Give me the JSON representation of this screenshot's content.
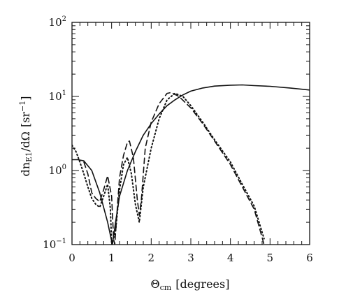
{
  "chart_data": {
    "type": "line",
    "xlabel": {
      "symbol": "Θ",
      "sub": "cm",
      "unit": "[degrees]"
    },
    "ylabel": {
      "main": "dn",
      "sub": "E1",
      "mid": "/dΩ",
      "unit_open": "[sr",
      "unit_exp": "−1",
      "unit_close": "]"
    },
    "xlim": [
      0,
      6
    ],
    "ylim": [
      0.1,
      100
    ],
    "y_scale": "log",
    "grid": false,
    "x_ticks": [
      {
        "value": 0,
        "label": "0"
      },
      {
        "value": 1,
        "label": "1"
      },
      {
        "value": 2,
        "label": "2"
      },
      {
        "value": 3,
        "label": "3"
      },
      {
        "value": 4,
        "label": "4"
      },
      {
        "value": 5,
        "label": "5"
      },
      {
        "value": 6,
        "label": "6"
      }
    ],
    "y_ticks": [
      {
        "value": 0.1,
        "base": "10",
        "exp": "−1"
      },
      {
        "value": 1,
        "base": "10",
        "exp": "0"
      },
      {
        "value": 10,
        "base": "10",
        "exp": "1"
      },
      {
        "value": 100,
        "base": "10",
        "exp": "2"
      }
    ],
    "series": [
      {
        "style": "solid",
        "points": [
          [
            0,
            1.4
          ],
          [
            0.15,
            1.4
          ],
          [
            0.3,
            1.35
          ],
          [
            0.5,
            1.0
          ],
          [
            0.7,
            0.5
          ],
          [
            0.9,
            0.2
          ],
          [
            1.02,
            0.1
          ],
          [
            1.1,
            0.2
          ],
          [
            1.2,
            0.45
          ],
          [
            1.4,
            1.0
          ],
          [
            1.6,
            1.8
          ],
          [
            1.8,
            3.0
          ],
          [
            2.0,
            4.3
          ],
          [
            2.2,
            5.8
          ],
          [
            2.4,
            7.5
          ],
          [
            2.6,
            9.0
          ],
          [
            2.8,
            10.5
          ],
          [
            3.0,
            11.8
          ],
          [
            3.3,
            13.0
          ],
          [
            3.6,
            13.8
          ],
          [
            4.0,
            14.2
          ],
          [
            4.3,
            14.3
          ],
          [
            4.6,
            14.0
          ],
          [
            5.0,
            13.7
          ],
          [
            5.5,
            13.0
          ],
          [
            6.0,
            12.2
          ]
        ]
      },
      {
        "style": "dashed",
        "points": [
          [
            0.3,
            1.3
          ],
          [
            0.4,
            0.9
          ],
          [
            0.5,
            0.5
          ],
          [
            0.6,
            0.42
          ],
          [
            0.7,
            0.38
          ],
          [
            0.8,
            0.55
          ],
          [
            0.9,
            0.85
          ],
          [
            1.0,
            0.45
          ],
          [
            1.05,
            0.12
          ],
          [
            1.08,
            0.1
          ],
          [
            1.15,
            0.35
          ],
          [
            1.2,
            0.8
          ],
          [
            1.3,
            1.6
          ],
          [
            1.4,
            2.4
          ],
          [
            1.45,
            2.5
          ],
          [
            1.55,
            1.5
          ],
          [
            1.65,
            0.4
          ],
          [
            1.7,
            0.25
          ],
          [
            1.75,
            0.4
          ],
          [
            1.85,
            2.0
          ],
          [
            2.0,
            4.5
          ],
          [
            2.2,
            8.0
          ],
          [
            2.4,
            11.0
          ],
          [
            2.5,
            11.3
          ],
          [
            2.7,
            10.0
          ],
          [
            3.0,
            7.0
          ],
          [
            3.3,
            4.3
          ],
          [
            3.6,
            2.5
          ],
          [
            4.0,
            1.2
          ],
          [
            4.3,
            0.6
          ],
          [
            4.6,
            0.3
          ],
          [
            4.85,
            0.1
          ]
        ]
      },
      {
        "style": "dotted",
        "points": [
          [
            0,
            2.2
          ],
          [
            0.1,
            1.8
          ],
          [
            0.2,
            1.3
          ],
          [
            0.3,
            0.9
          ],
          [
            0.4,
            0.6
          ],
          [
            0.5,
            0.42
          ],
          [
            0.6,
            0.35
          ],
          [
            0.7,
            0.32
          ],
          [
            0.8,
            0.45
          ],
          [
            0.9,
            0.65
          ],
          [
            0.97,
            0.3
          ],
          [
            1.0,
            0.1
          ],
          [
            1.1,
            0.15
          ],
          [
            1.2,
            0.55
          ],
          [
            1.3,
            1.2
          ],
          [
            1.4,
            1.5
          ],
          [
            1.5,
            0.9
          ],
          [
            1.6,
            0.35
          ],
          [
            1.7,
            0.2
          ],
          [
            1.8,
            0.6
          ],
          [
            2.0,
            2.0
          ],
          [
            2.2,
            5.0
          ],
          [
            2.4,
            9.0
          ],
          [
            2.6,
            11.0
          ],
          [
            2.8,
            10.0
          ],
          [
            3.0,
            7.5
          ],
          [
            3.3,
            4.5
          ],
          [
            3.6,
            2.6
          ],
          [
            4.0,
            1.3
          ],
          [
            4.3,
            0.65
          ],
          [
            4.6,
            0.33
          ],
          [
            4.85,
            0.12
          ]
        ]
      }
    ]
  }
}
